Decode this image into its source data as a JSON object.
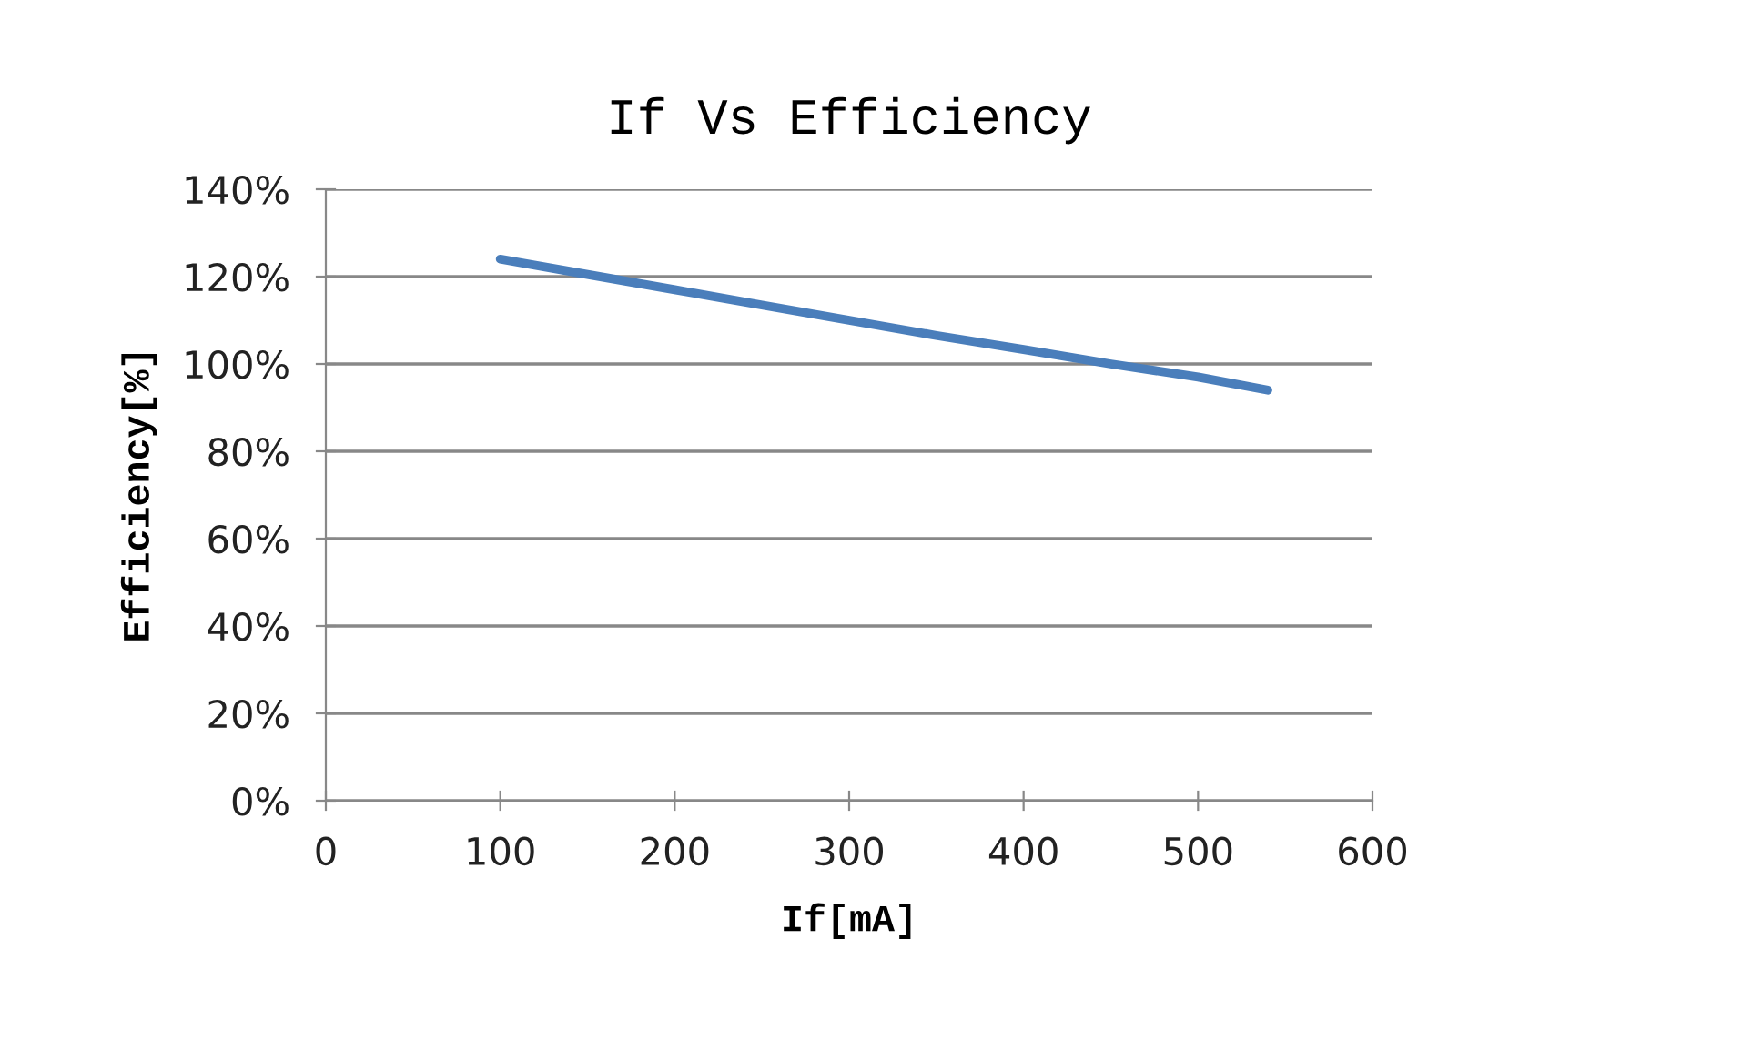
{
  "chart_data": {
    "type": "line",
    "title": "If Vs Efficiency",
    "xlabel": "If[mA]",
    "ylabel": "Efficiency[%]",
    "x": [
      100,
      150,
      200,
      250,
      300,
      350,
      400,
      450,
      500,
      540
    ],
    "series": [
      {
        "color": "#4a7ebb",
        "values": [
          124,
          120.5,
          117,
          113.5,
          110,
          106.5,
          103.3,
          100,
          97,
          94
        ]
      }
    ],
    "xlim": [
      0,
      600
    ],
    "xticks": [
      0,
      100,
      200,
      300,
      400,
      500,
      600
    ],
    "ylim": [
      0,
      140
    ],
    "yticks": [
      {
        "value": 0,
        "label": "0%"
      },
      {
        "value": 20,
        "label": "20%"
      },
      {
        "value": 40,
        "label": "40%"
      },
      {
        "value": 60,
        "label": "60%"
      },
      {
        "value": 80,
        "label": "80%"
      },
      {
        "value": 100,
        "label": "100%"
      },
      {
        "value": 120,
        "label": "120%"
      },
      {
        "value": 140,
        "label": "140%"
      }
    ],
    "grid": "y",
    "marker": "none",
    "line_style": "solid",
    "legend": false
  }
}
